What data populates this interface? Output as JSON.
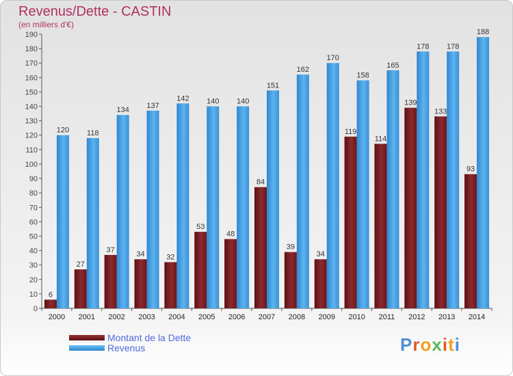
{
  "title": "Revenus/Dette - CASTIN",
  "subtitle": "(en milliers d'€)",
  "logo": {
    "text": "Proxiti",
    "colors": [
      "#4d8fd6",
      "#e05a2b",
      "#f0a020",
      "#5cb85c",
      "#e05a2b",
      "#f0a020",
      "#4d8fd6"
    ]
  },
  "chart_data": {
    "type": "bar",
    "categories": [
      "2000",
      "2001",
      "2002",
      "2003",
      "2004",
      "2005",
      "2006",
      "2007",
      "2008",
      "2009",
      "2010",
      "2011",
      "2012",
      "2013",
      "2014"
    ],
    "series": [
      {
        "name": "Montant de la Dette",
        "color": "#7a1a1a",
        "values": [
          6,
          27,
          37,
          34,
          32,
          53,
          48,
          84,
          39,
          34,
          119,
          114,
          139,
          133,
          93
        ]
      },
      {
        "name": "Revenus",
        "color": "#4fa6e6",
        "values": [
          120,
          118,
          134,
          137,
          142,
          140,
          140,
          151,
          162,
          170,
          158,
          165,
          178,
          178,
          188
        ]
      }
    ],
    "ylim": [
      0,
      190
    ],
    "yticks": [
      0,
      10,
      20,
      30,
      40,
      50,
      60,
      70,
      80,
      90,
      100,
      110,
      120,
      130,
      140,
      150,
      160,
      170,
      180,
      190
    ],
    "grid": false,
    "legend": "bottom-left"
  }
}
